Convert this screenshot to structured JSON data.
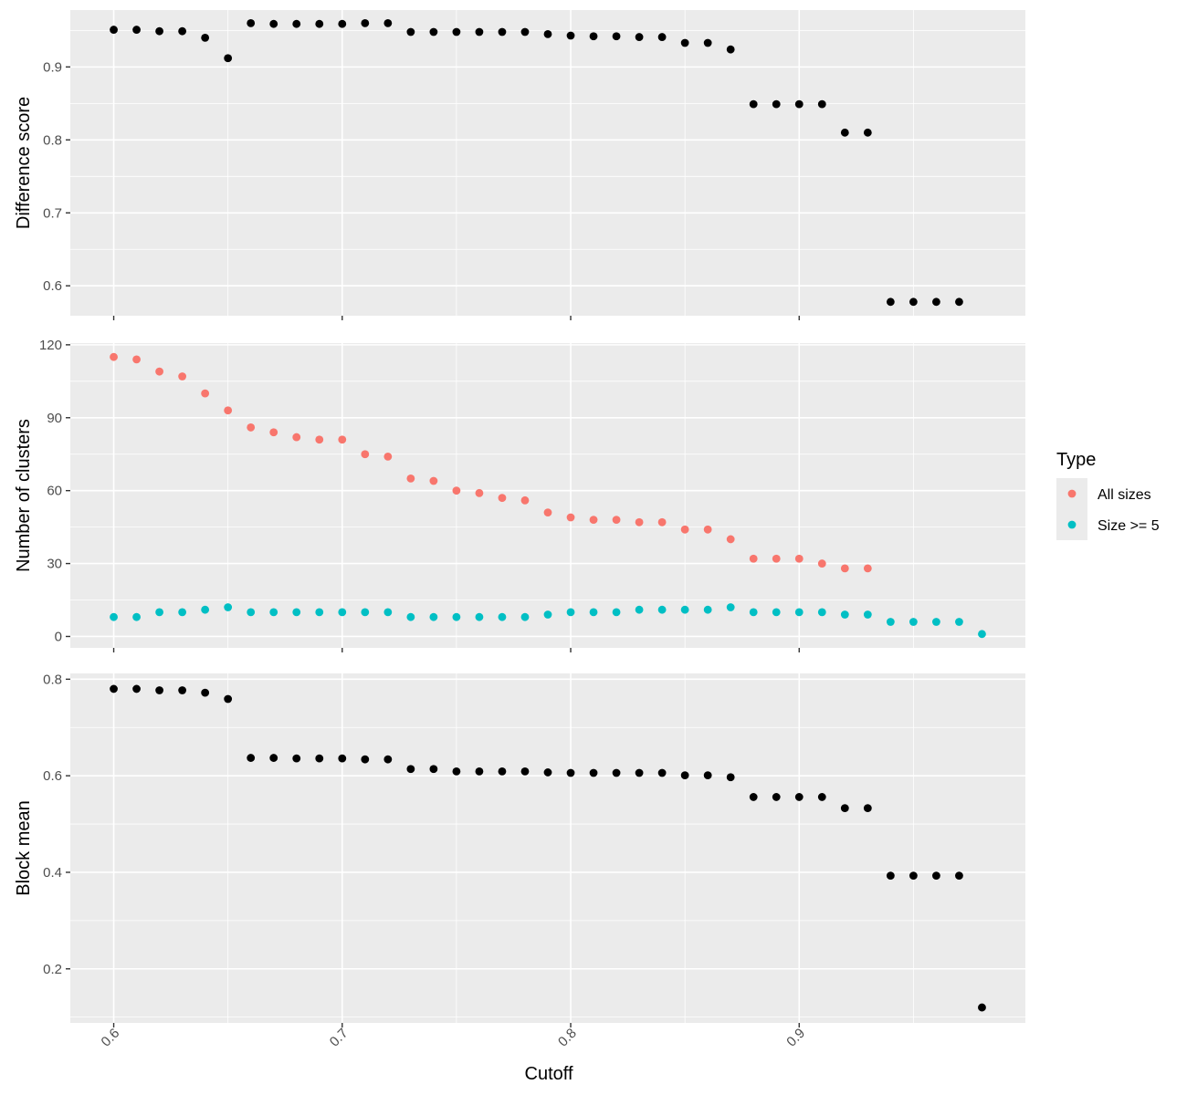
{
  "chart_data": {
    "type": "scatter",
    "x_label": "Cutoff",
    "x_ticks": [
      0.6,
      0.7,
      0.8,
      0.9
    ],
    "x_tick_labels": [
      "0.6",
      "0.7",
      "0.8",
      "0.9"
    ],
    "x_range": [
      0.581,
      0.999
    ],
    "grid": true,
    "legend_position": "right",
    "panels": [
      {
        "id": "difference-score",
        "ylabel": "Difference score",
        "ylim": [
          0.559,
          0.978
        ],
        "y_ticks": [
          0.6,
          0.7,
          0.8,
          0.9
        ],
        "y_tick_labels": [
          "0.6",
          "0.7",
          "0.8",
          "0.9"
        ],
        "series": [
          {
            "color": "#000000",
            "x": [
              0.6,
              0.61,
              0.62,
              0.63,
              0.64,
              0.65,
              0.66,
              0.67,
              0.68,
              0.69,
              0.7,
              0.71,
              0.72,
              0.73,
              0.74,
              0.75,
              0.76,
              0.77,
              0.78,
              0.79,
              0.8,
              0.81,
              0.82,
              0.83,
              0.84,
              0.85,
              0.86,
              0.87,
              0.88,
              0.89,
              0.9,
              0.91,
              0.92,
              0.93,
              0.94,
              0.95,
              0.96,
              0.97
            ],
            "y": [
              0.951,
              0.951,
              0.949,
              0.949,
              0.94,
              0.912,
              0.96,
              0.959,
              0.959,
              0.959,
              0.959,
              0.96,
              0.96,
              0.948,
              0.948,
              0.948,
              0.948,
              0.948,
              0.948,
              0.945,
              0.943,
              0.942,
              0.942,
              0.941,
              0.941,
              0.933,
              0.933,
              0.924,
              0.849,
              0.849,
              0.849,
              0.849,
              0.81,
              0.81,
              0.578,
              0.578,
              0.578,
              0.578
            ]
          }
        ]
      },
      {
        "id": "number-of-clusters",
        "ylabel": "Number of clusters",
        "ylim": [
          -4.7,
          120.7
        ],
        "y_ticks": [
          0,
          30,
          60,
          90,
          120
        ],
        "y_tick_labels": [
          "0",
          "30",
          "60",
          "90",
          "120"
        ],
        "series": [
          {
            "name": "All sizes",
            "color": "#f8766d",
            "x": [
              0.6,
              0.61,
              0.62,
              0.63,
              0.64,
              0.65,
              0.66,
              0.67,
              0.68,
              0.69,
              0.7,
              0.71,
              0.72,
              0.73,
              0.74,
              0.75,
              0.76,
              0.77,
              0.78,
              0.79,
              0.8,
              0.81,
              0.82,
              0.83,
              0.84,
              0.85,
              0.86,
              0.87,
              0.88,
              0.89,
              0.9,
              0.91,
              0.92,
              0.93
            ],
            "y": [
              115,
              114,
              109,
              107,
              100,
              93,
              86,
              84,
              82,
              81,
              81,
              75,
              74,
              65,
              64,
              60,
              59,
              57,
              56,
              51,
              49,
              48,
              48,
              47,
              47,
              44,
              44,
              40,
              32,
              32,
              32,
              30,
              28,
              28
            ]
          },
          {
            "name": "Size >= 5",
            "color": "#00bfc4",
            "x": [
              0.6,
              0.61,
              0.62,
              0.63,
              0.64,
              0.65,
              0.66,
              0.67,
              0.68,
              0.69,
              0.7,
              0.71,
              0.72,
              0.73,
              0.74,
              0.75,
              0.76,
              0.77,
              0.78,
              0.79,
              0.8,
              0.81,
              0.82,
              0.83,
              0.84,
              0.85,
              0.86,
              0.87,
              0.88,
              0.89,
              0.9,
              0.91,
              0.92,
              0.93,
              0.94,
              0.95,
              0.96,
              0.97,
              0.98
            ],
            "y": [
              8,
              8,
              10,
              10,
              11,
              12,
              10,
              10,
              10,
              10,
              10,
              10,
              10,
              8,
              8,
              8,
              8,
              8,
              8,
              9,
              10,
              10,
              10,
              11,
              11,
              11,
              11,
              12,
              10,
              10,
              10,
              10,
              9,
              9,
              6,
              6,
              6,
              6,
              1
            ]
          }
        ]
      },
      {
        "id": "block-mean",
        "ylabel": "Block mean",
        "ylim": [
          0.088,
          0.812
        ],
        "y_ticks": [
          0.2,
          0.4,
          0.6,
          0.8
        ],
        "y_tick_labels": [
          "0.2",
          "0.4",
          "0.6",
          "0.8"
        ],
        "series": [
          {
            "color": "#000000",
            "x": [
              0.6,
              0.61,
              0.62,
              0.63,
              0.64,
              0.65,
              0.66,
              0.67,
              0.68,
              0.69,
              0.7,
              0.71,
              0.72,
              0.73,
              0.74,
              0.75,
              0.76,
              0.77,
              0.78,
              0.79,
              0.8,
              0.81,
              0.82,
              0.83,
              0.84,
              0.85,
              0.86,
              0.87,
              0.88,
              0.89,
              0.9,
              0.91,
              0.92,
              0.93,
              0.94,
              0.95,
              0.96,
              0.97,
              0.98
            ],
            "y": [
              0.78,
              0.78,
              0.777,
              0.777,
              0.772,
              0.759,
              0.637,
              0.637,
              0.636,
              0.636,
              0.636,
              0.634,
              0.634,
              0.614,
              0.614,
              0.609,
              0.609,
              0.609,
              0.609,
              0.607,
              0.606,
              0.606,
              0.606,
              0.606,
              0.606,
              0.601,
              0.601,
              0.597,
              0.556,
              0.556,
              0.556,
              0.556,
              0.533,
              0.533,
              0.393,
              0.393,
              0.393,
              0.393,
              0.12
            ]
          }
        ]
      }
    ],
    "legend": {
      "title": "Type",
      "items": [
        {
          "label": "All sizes",
          "color": "#f8766d"
        },
        {
          "label": "Size >= 5",
          "color": "#00bfc4"
        }
      ]
    }
  }
}
